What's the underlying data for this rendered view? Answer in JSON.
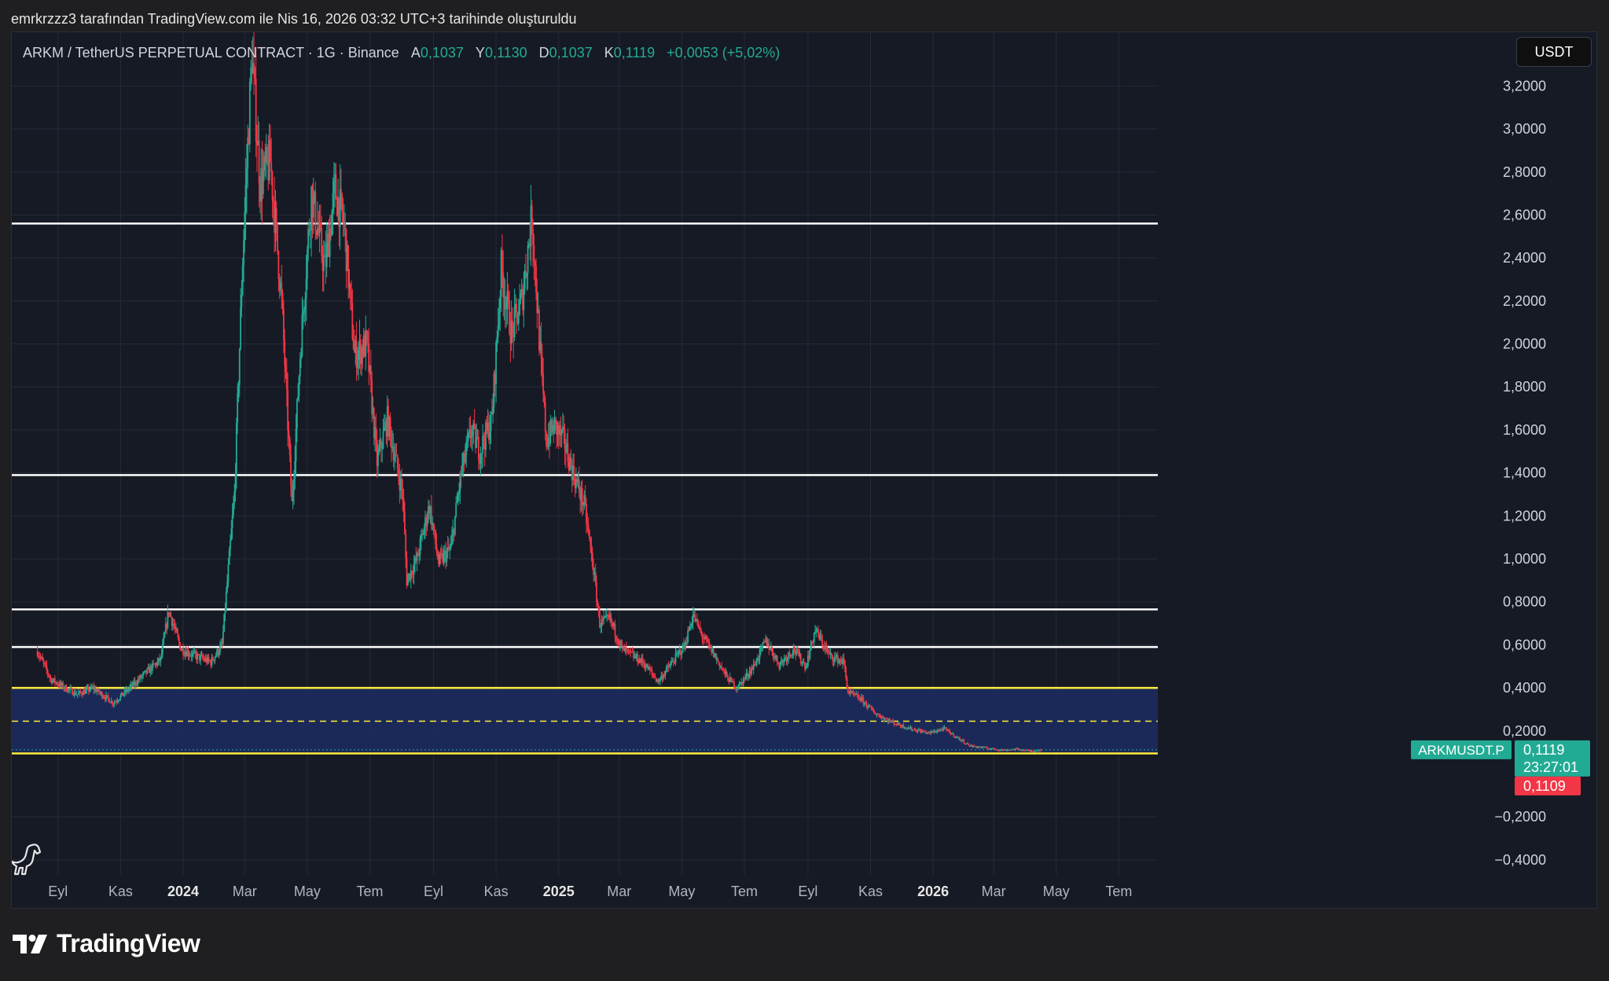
{
  "caption": "emrkrzzz3 tarafından TradingView.com ile Nis 16, 2026 03:32 UTC+3 tarihinde oluşturuldu",
  "legend": {
    "symbol": "ARKM / TetherUS PERPETUAL CONTRACT · 1G · Binance",
    "open_label": "A",
    "open": "0,1037",
    "high_label": "Y",
    "high": "0,1130",
    "low_label": "D",
    "low": "0,1037",
    "close_label": "K",
    "close": "0,1119",
    "change": "+0,0053 (+5,02%)"
  },
  "currency_button": "USDT",
  "brand": "TradingView",
  "colors": {
    "background": "#161a25",
    "up": "#22ab94",
    "down": "#f23645",
    "level_line": "#ffffff",
    "zone_line": "#ffeb3b",
    "zone_fill": "#1c2b5e",
    "grid": "#262a36"
  },
  "chart_data": {
    "type": "candlestick",
    "x_axis": {
      "labels": [
        "Eyl",
        "Kas",
        "2024",
        "Mar",
        "May",
        "Tem",
        "Eyl",
        "Kas",
        "2025",
        "Mar",
        "May",
        "Tem",
        "Eyl",
        "Kas",
        "2026",
        "Mar",
        "May",
        "Tem"
      ],
      "dates": [
        "2023-09-01",
        "2023-11-01",
        "2024-01-01",
        "2024-03-01",
        "2024-05-01",
        "2024-07-01",
        "2024-09-01",
        "2024-11-01",
        "2025-01-01",
        "2025-03-01",
        "2025-05-01",
        "2025-07-01",
        "2025-09-01",
        "2025-11-01",
        "2026-01-01",
        "2026-03-01",
        "2026-05-01",
        "2026-07-01"
      ],
      "bold": [
        "2024",
        "2025",
        "2026"
      ],
      "range": [
        "2023-07-18",
        "2026-08-08"
      ]
    },
    "y_axis": {
      "range": [
        -0.47,
        3.45
      ],
      "ticks": [
        3.2,
        3.0,
        2.8,
        2.6,
        2.4,
        2.2,
        2.0,
        1.8,
        1.6,
        1.4,
        1.2,
        1.0,
        0.8,
        0.6,
        0.4,
        0.2,
        -0.2,
        -0.4
      ],
      "tick_labels": [
        "3,2000",
        "3,0000",
        "2,8000",
        "2,6000",
        "2,4000",
        "2,2000",
        "2,0000",
        "1,8000",
        "1,6000",
        "1,4000",
        "1,2000",
        "1,0000",
        "0,8000",
        "0,6000",
        "0,4000",
        "0,2000",
        "−0,2000",
        "−0,4000"
      ]
    },
    "grid": true,
    "price_path": [
      [
        "2023-08-12",
        0.57
      ],
      [
        "2023-08-25",
        0.44
      ],
      [
        "2023-09-08",
        0.4
      ],
      [
        "2023-09-20",
        0.37
      ],
      [
        "2023-10-05",
        0.4
      ],
      [
        "2023-10-25",
        0.33
      ],
      [
        "2023-11-10",
        0.4
      ],
      [
        "2023-11-28",
        0.48
      ],
      [
        "2023-12-10",
        0.53
      ],
      [
        "2023-12-18",
        0.76
      ],
      [
        "2023-12-30",
        0.58
      ],
      [
        "2024-01-12",
        0.55
      ],
      [
        "2024-01-28",
        0.52
      ],
      [
        "2024-02-08",
        0.6
      ],
      [
        "2024-02-20",
        1.3
      ],
      [
        "2024-02-28",
        2.4
      ],
      [
        "2024-03-08",
        3.35
      ],
      [
        "2024-03-16",
        2.75
      ],
      [
        "2024-03-26",
        2.85
      ],
      [
        "2024-04-06",
        2.2
      ],
      [
        "2024-04-16",
        1.25
      ],
      [
        "2024-04-24",
        1.95
      ],
      [
        "2024-05-05",
        2.7
      ],
      [
        "2024-05-18",
        2.35
      ],
      [
        "2024-05-28",
        2.72
      ],
      [
        "2024-06-06",
        2.55
      ],
      [
        "2024-06-16",
        1.95
      ],
      [
        "2024-06-28",
        2.0
      ],
      [
        "2024-07-08",
        1.45
      ],
      [
        "2024-07-18",
        1.65
      ],
      [
        "2024-08-02",
        1.3
      ],
      [
        "2024-08-06",
        0.9
      ],
      [
        "2024-08-16",
        1.0
      ],
      [
        "2024-08-28",
        1.25
      ],
      [
        "2024-09-06",
        0.98
      ],
      [
        "2024-09-18",
        1.05
      ],
      [
        "2024-09-28",
        1.4
      ],
      [
        "2024-10-08",
        1.6
      ],
      [
        "2024-10-16",
        1.5
      ],
      [
        "2024-10-28",
        1.65
      ],
      [
        "2024-11-06",
        2.35
      ],
      [
        "2024-11-16",
        2.05
      ],
      [
        "2024-11-26",
        2.2
      ],
      [
        "2024-12-06",
        2.6
      ],
      [
        "2024-12-14",
        1.95
      ],
      [
        "2024-12-20",
        1.55
      ],
      [
        "2024-12-28",
        1.62
      ],
      [
        "2025-01-06",
        1.55
      ],
      [
        "2025-01-15",
        1.4
      ],
      [
        "2025-01-26",
        1.25
      ],
      [
        "2025-02-04",
        0.95
      ],
      [
        "2025-02-10",
        0.7
      ],
      [
        "2025-02-20",
        0.72
      ],
      [
        "2025-03-04",
        0.58
      ],
      [
        "2025-03-14",
        0.55
      ],
      [
        "2025-03-24",
        0.52
      ],
      [
        "2025-04-08",
        0.43
      ],
      [
        "2025-04-22",
        0.52
      ],
      [
        "2025-05-04",
        0.6
      ],
      [
        "2025-05-12",
        0.74
      ],
      [
        "2025-05-20",
        0.65
      ],
      [
        "2025-06-02",
        0.55
      ],
      [
        "2025-06-14",
        0.45
      ],
      [
        "2025-06-24",
        0.4
      ],
      [
        "2025-07-10",
        0.5
      ],
      [
        "2025-07-22",
        0.62
      ],
      [
        "2025-08-04",
        0.51
      ],
      [
        "2025-08-18",
        0.58
      ],
      [
        "2025-08-30",
        0.5
      ],
      [
        "2025-09-08",
        0.67
      ],
      [
        "2025-09-22",
        0.55
      ],
      [
        "2025-10-06",
        0.52
      ],
      [
        "2025-10-10",
        0.38
      ],
      [
        "2025-10-22",
        0.35
      ],
      [
        "2025-11-06",
        0.28
      ],
      [
        "2025-11-22",
        0.24
      ],
      [
        "2025-12-10",
        0.21
      ],
      [
        "2025-12-28",
        0.19
      ],
      [
        "2026-01-12",
        0.21
      ],
      [
        "2026-01-24",
        0.17
      ],
      [
        "2026-02-06",
        0.13
      ],
      [
        "2026-02-22",
        0.12
      ],
      [
        "2026-03-10",
        0.11
      ],
      [
        "2026-03-24",
        0.115
      ],
      [
        "2026-04-06",
        0.105
      ],
      [
        "2026-04-16",
        0.1119
      ]
    ],
    "horizontal_levels": [
      2.56,
      1.39,
      0.765,
      0.59
    ],
    "zone": {
      "top": 0.4,
      "bottom": 0.095,
      "mid": 0.245
    },
    "last_price": {
      "label": "ARKMUSDT.P",
      "value": 0.1119,
      "value_text": "0,1119",
      "countdown": "23:27:01"
    },
    "low_marker": {
      "value": 0.1109,
      "value_text": "0,1109"
    }
  }
}
